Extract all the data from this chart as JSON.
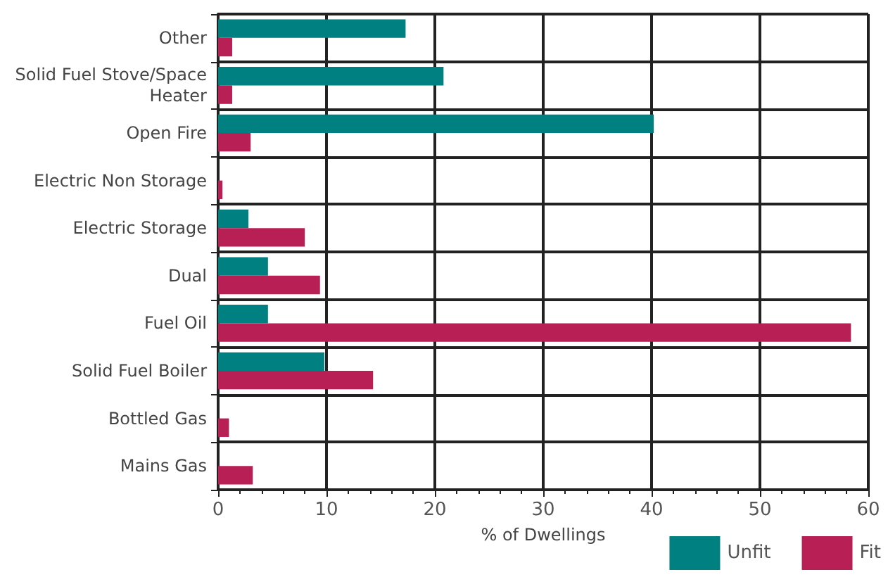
{
  "chart_data": {
    "type": "bar",
    "orientation": "horizontal",
    "xlabel": "% of Dwellings",
    "categories": [
      "Other",
      "Solid Fuel Stove/Space Heater",
      "Open Fire",
      "Electric Non Storage",
      "Electric Storage",
      "Dual",
      "Fuel Oil",
      "Solid Fuel Boiler",
      "Bottled Gas",
      "Mains Gas"
    ],
    "series": [
      {
        "name": "Unfit",
        "color": "#008080",
        "values": [
          17.3,
          20.8,
          40.2,
          0,
          2.8,
          4.6,
          4.6,
          9.8,
          0,
          0
        ]
      },
      {
        "name": "Fit",
        "color": "#b81f54",
        "values": [
          1.3,
          1.3,
          3.0,
          0.4,
          8.0,
          9.4,
          58.4,
          14.3,
          1.0,
          3.2
        ]
      }
    ],
    "xlim": [
      0,
      60
    ],
    "xticks": [
      0,
      10,
      20,
      30,
      40,
      50,
      60
    ],
    "grid": true,
    "legend": "bottom right"
  }
}
